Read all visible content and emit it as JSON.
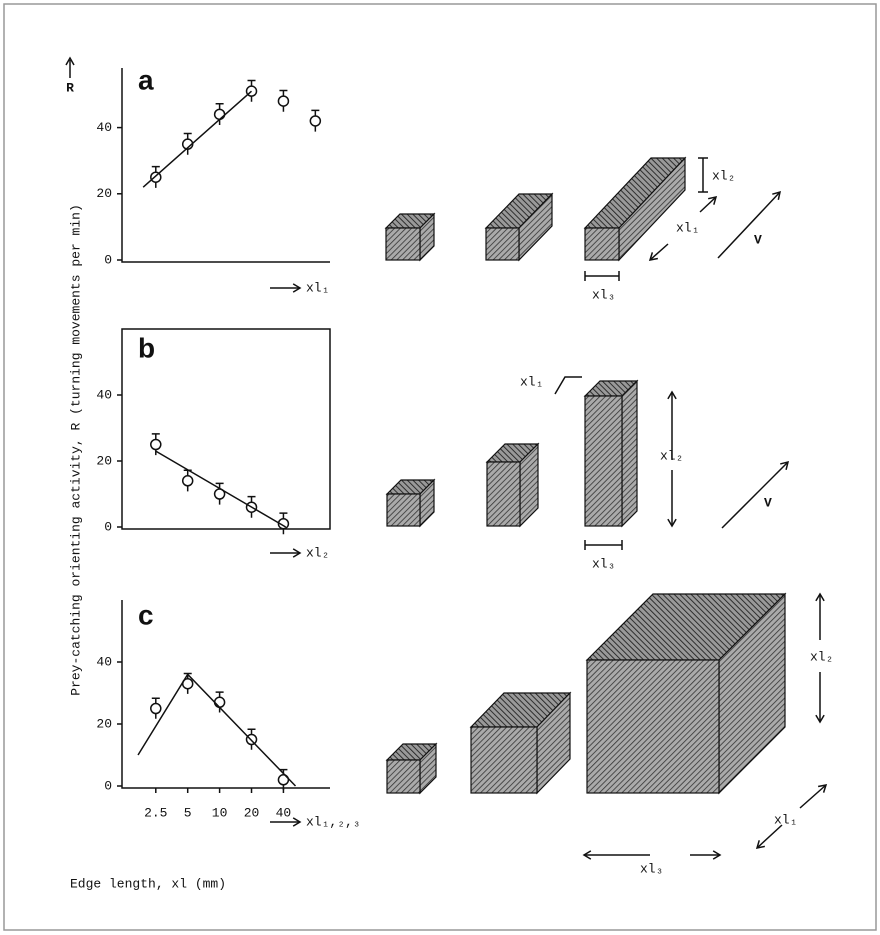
{
  "figure": {
    "ylabel": "Prey-catching orienting activity, R (turning movements per min)",
    "xlabel": "Edge length, xl (mm)",
    "y_arrow_label": "R"
  },
  "chart_data": [
    {
      "type": "scatter",
      "title": "a",
      "xlabel": "xl₁",
      "xscale": "log",
      "xlim": [
        1.2,
        110
      ],
      "ylim": [
        0,
        58
      ],
      "yticks": [
        0,
        20,
        40
      ],
      "x": [
        2.5,
        5,
        10,
        20,
        40,
        80
      ],
      "values": [
        25,
        35,
        44,
        51,
        48,
        42
      ],
      "errors": [
        2,
        2,
        2,
        2,
        2,
        2
      ],
      "fit": {
        "x": [
          1.9,
          20
        ],
        "values": [
          22,
          51
        ]
      },
      "box": false,
      "annotations": {
        "edge_1": "xl₁",
        "edge_2": "xl₂",
        "edge_3": "xl₃",
        "velocity": "V"
      }
    },
    {
      "type": "scatter",
      "title": "b",
      "xlabel": "xl₂",
      "xscale": "log",
      "xlim": [
        1.2,
        110
      ],
      "ylim": [
        0,
        60
      ],
      "yticks": [
        0,
        20,
        40
      ],
      "x": [
        2.5,
        5,
        10,
        20,
        40
      ],
      "values": [
        25,
        14,
        10,
        6,
        1
      ],
      "errors": [
        2,
        2,
        2,
        2,
        2
      ],
      "fit": {
        "x": [
          2.5,
          42
        ],
        "values": [
          23,
          0
        ]
      },
      "box": true,
      "annotations": {
        "edge_1": "xl₁",
        "edge_2": "xl₂",
        "edge_3": "xl₃",
        "velocity": "V"
      }
    },
    {
      "type": "scatter",
      "title": "c",
      "xlabel": "xl₁,₂,₃",
      "xscale": "log",
      "xlim": [
        1.2,
        110
      ],
      "ylim": [
        0,
        60
      ],
      "yticks": [
        0,
        20,
        40
      ],
      "xticks": [
        2.5,
        5,
        10,
        20,
        40
      ],
      "x": [
        2.5,
        5,
        10,
        20,
        40
      ],
      "values": [
        25,
        33,
        27,
        15,
        2
      ],
      "errors": [
        2,
        2,
        2,
        2,
        2
      ],
      "fit": {
        "x": [
          1.7,
          5,
          52
        ],
        "values": [
          10,
          36,
          0
        ]
      },
      "box": false,
      "annotations": {
        "edge_1": "xl₁",
        "edge_2": "xl₂",
        "edge_3": "xl₃"
      }
    }
  ]
}
